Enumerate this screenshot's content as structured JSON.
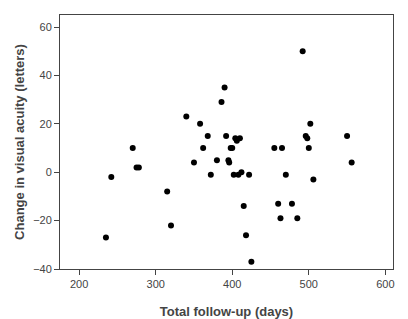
{
  "chart_data": {
    "type": "scatter",
    "x": [
      235,
      242,
      270,
      275,
      278,
      315,
      320,
      340,
      350,
      358,
      362,
      368,
      372,
      380,
      386,
      390,
      392,
      395,
      396,
      398,
      400,
      402,
      404,
      406,
      408,
      410,
      412,
      415,
      418,
      422,
      425,
      455,
      460,
      463,
      465,
      470,
      478,
      485,
      492,
      496,
      498,
      500,
      502,
      506,
      550,
      556
    ],
    "values": [
      -27,
      -2,
      10,
      2,
      2,
      -8,
      -22,
      23,
      4,
      20,
      10,
      15,
      -1,
      5,
      29,
      35,
      15,
      5,
      4,
      10,
      10,
      -1,
      14,
      13,
      -1,
      14,
      0,
      -14,
      -26,
      -1,
      -37,
      10,
      -13,
      -19,
      10,
      -1,
      -13,
      -19,
      50,
      15,
      14,
      10,
      20,
      -3,
      15,
      4
    ],
    "color": "black",
    "xlim": [
      175,
      610
    ],
    "ylim": [
      -40,
      65
    ],
    "xticks": [
      200,
      300,
      400,
      500,
      600
    ],
    "yticks": [
      -40,
      -20,
      0,
      20,
      40,
      60
    ],
    "xlabel": "Total follow-up (days)",
    "ylabel": "Change in visual acuity (letters)",
    "grid": false
  }
}
